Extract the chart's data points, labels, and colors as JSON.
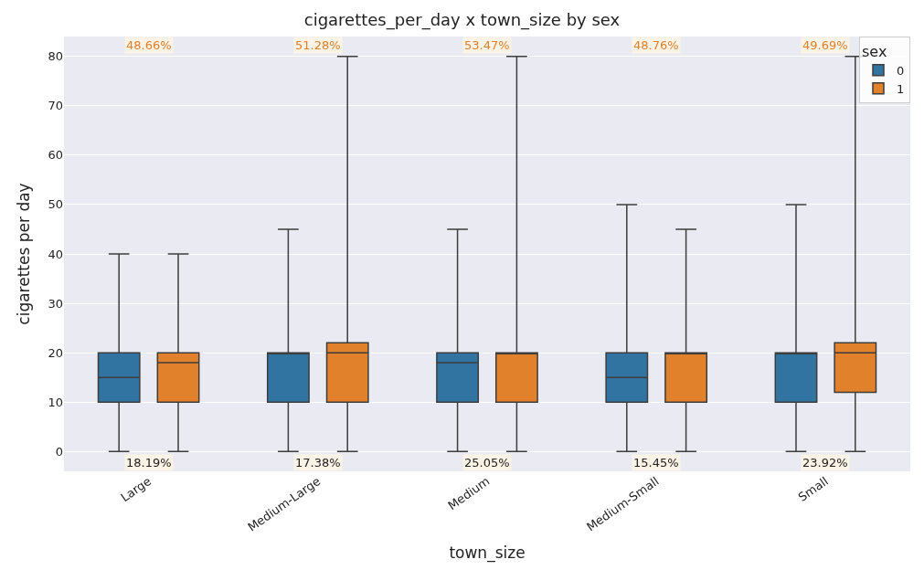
{
  "chart_data": {
    "type": "box",
    "title": "cigarettes_per_day x town_size by sex",
    "xlabel": "town_size",
    "ylabel": "cigarettes per day",
    "legend_title": "sex",
    "categories": [
      "Large",
      "Medium-Large",
      "Medium",
      "Medium-Small",
      "Small"
    ],
    "series": [
      {
        "name": "0",
        "color": "#3274a1",
        "boxes": [
          {
            "low": 0,
            "q1": 10,
            "median": 15,
            "q3": 20,
            "high": 40
          },
          {
            "low": 0,
            "q1": 10,
            "median": 20,
            "q3": 20,
            "high": 45
          },
          {
            "low": 0,
            "q1": 10,
            "median": 18,
            "q3": 20,
            "high": 45
          },
          {
            "low": 0,
            "q1": 10,
            "median": 15,
            "q3": 20,
            "high": 50
          },
          {
            "low": 0,
            "q1": 10,
            "median": 20,
            "q3": 20,
            "high": 50
          }
        ]
      },
      {
        "name": "1",
        "color": "#e1812c",
        "boxes": [
          {
            "low": 0,
            "q1": 10,
            "median": 18,
            "q3": 20,
            "high": 40
          },
          {
            "low": 0,
            "q1": 10,
            "median": 20,
            "q3": 22,
            "high": 80
          },
          {
            "low": 0,
            "q1": 10,
            "median": 20,
            "q3": 20,
            "high": 80
          },
          {
            "low": 0,
            "q1": 10,
            "median": 20,
            "q3": 20,
            "high": 45
          },
          {
            "low": 0,
            "q1": 12,
            "median": 20,
            "q3": 22,
            "high": 80
          }
        ]
      }
    ],
    "annotations": [
      "48.66%",
      "51.28%",
      "53.47%",
      "48.76%",
      "49.69%",
      "18.19%",
      "17.38%",
      "25.05%",
      "15.45%",
      "23.92%"
    ],
    "ylim": [
      -4,
      84
    ],
    "yticks": [
      0,
      10,
      20,
      30,
      40,
      50,
      60,
      70,
      80
    ],
    "grid": "y",
    "legend": "top right"
  }
}
